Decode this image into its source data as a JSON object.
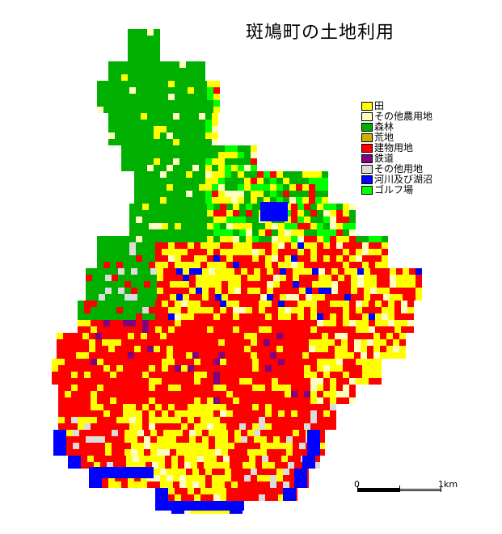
{
  "title": "斑鳩町の土地利用",
  "legend": [
    {
      "label": "田",
      "color": "#ffff00"
    },
    {
      "label": "その他農用地",
      "color": "#ffffc0"
    },
    {
      "label": "森林",
      "color": "#00b000"
    },
    {
      "label": "荒地",
      "color": "#c8b400"
    },
    {
      "label": "建物用地",
      "color": "#ff0000"
    },
    {
      "label": "鉄道",
      "color": "#800080"
    },
    {
      "label": "その他用地",
      "color": "#dcdcdc"
    },
    {
      "label": "河川及び湖沼",
      "color": "#0000ff"
    },
    {
      "label": "ゴルフ場",
      "color": "#00ff00"
    }
  ],
  "scale": {
    "start": "0",
    "end": "1km"
  }
}
